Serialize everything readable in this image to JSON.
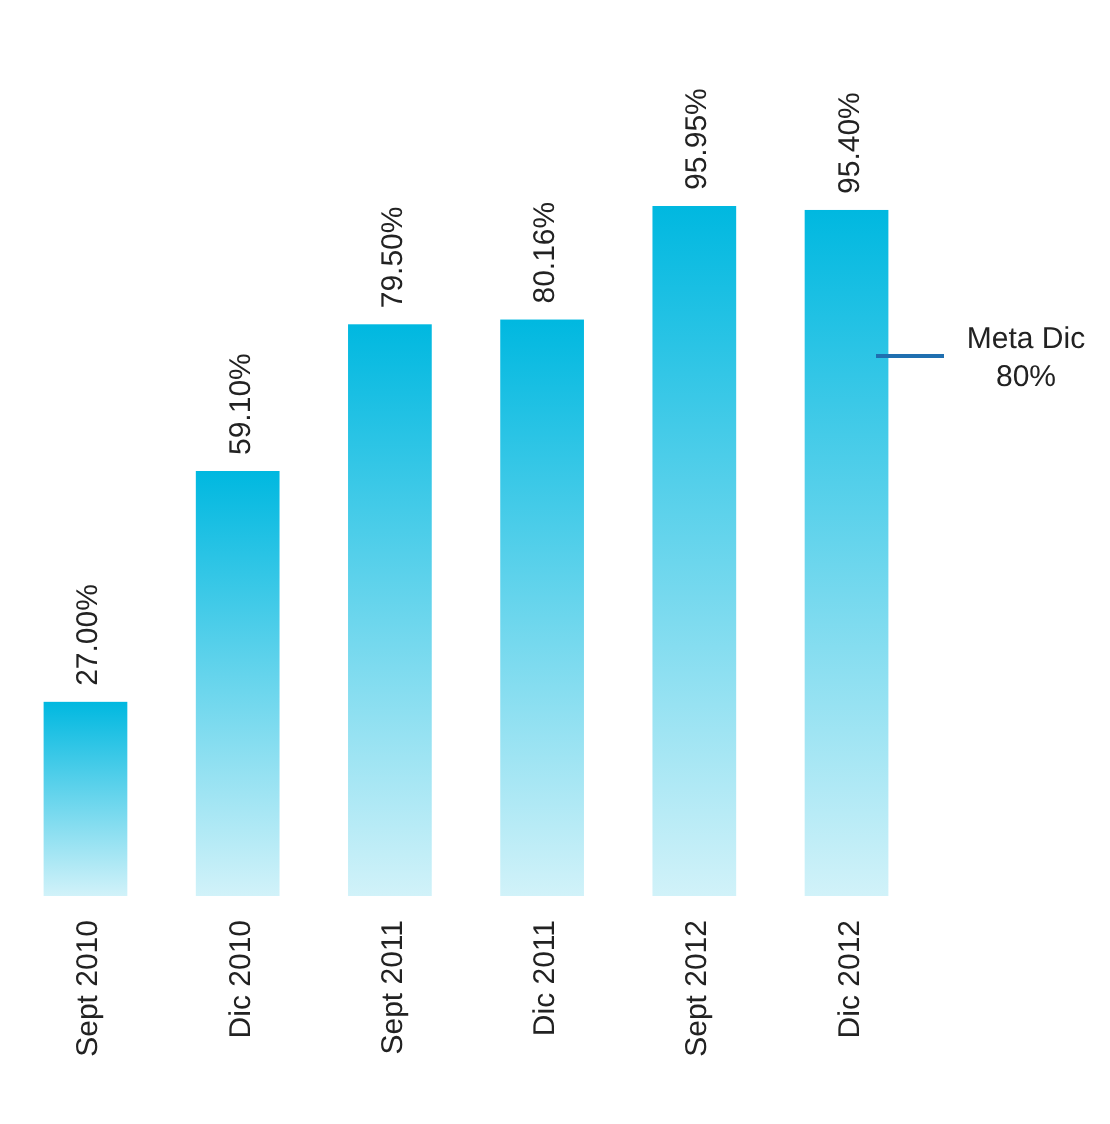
{
  "chart_data": {
    "type": "bar",
    "categories": [
      "Sept 2010",
      "Dic 2010",
      "Sept 2011",
      "Dic 2011",
      "Sept 2012",
      "Dic 2012"
    ],
    "values": [
      27.0,
      59.1,
      79.5,
      80.16,
      95.95,
      95.4
    ],
    "value_labels": [
      "27.00%",
      "59.10%",
      "79.50%",
      "80.16%",
      "95.95%",
      "95.40%"
    ],
    "color": "#00b8e0",
    "annotations": [
      "Meta Dic\n80%"
    ]
  }
}
